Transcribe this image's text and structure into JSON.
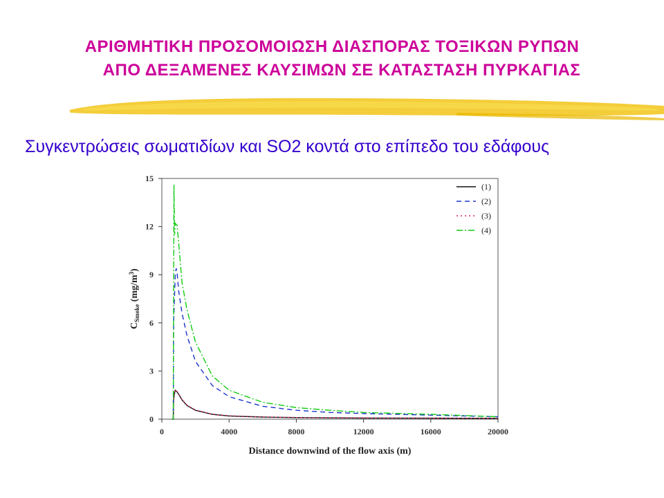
{
  "slide": {
    "title_line1": "ΑΡΙΘΜΗΤΙΚΗ ΠΡΟΣΟΜΟΙΩΣΗ ΔΙΑΣΠΟΡΑΣ ΤΟΞΙΚΩΝ ΡΥΠΩΝ",
    "title_line2": "ΑΠΟ ΔΕΞΑΜΕΝΕΣ ΚΑΥΣΙΜΩΝ ΣΕ ΚΑΤΑΣΤΑΣΗ ΠΥΡΚΑΓΙΑΣ",
    "subtitle": "Συγκεντρώσεις σωματιδίων και SO2 κοντά στο επίπεδο του εδάφους"
  },
  "colors": {
    "title": "#cc0099",
    "subtitle": "#3300cc",
    "brush": "#f2c418"
  },
  "chart_data": {
    "type": "line",
    "xlabel": "Distance downwind of the flow axis (m)",
    "ylabel_main": "C",
    "ylabel_sub": "Smoke",
    "ylabel_unit": "(mg/m",
    "ylabel_sup": "3",
    "ylabel_close": ")",
    "xlim": [
      0,
      20000
    ],
    "ylim": [
      0,
      15
    ],
    "xticks": [
      0,
      4000,
      8000,
      12000,
      16000,
      20000
    ],
    "yticks": [
      0,
      3,
      6,
      9,
      12,
      15
    ],
    "legend_position": "top-right",
    "series": [
      {
        "name": "(1)",
        "color": "#111111",
        "dash": "",
        "x": [
          600,
          680,
          700,
          750,
          800,
          850,
          900,
          1000,
          1200,
          1500,
          2000,
          3000,
          4000,
          6000,
          8000,
          12000,
          16000,
          20000
        ],
        "y": [
          0,
          0,
          1.2,
          1.6,
          1.8,
          1.75,
          1.7,
          1.55,
          1.2,
          0.85,
          0.55,
          0.3,
          0.2,
          0.13,
          0.1,
          0.07,
          0.06,
          0.05
        ]
      },
      {
        "name": "(2)",
        "color": "#1a33cc",
        "dash": "7,5",
        "x": [
          600,
          680,
          700,
          800,
          850,
          900,
          1000,
          1200,
          1500,
          2000,
          3000,
          4000,
          6000,
          8000,
          10000,
          12000,
          16000,
          20000
        ],
        "y": [
          0,
          0,
          6.0,
          9.0,
          9.4,
          9.2,
          8.0,
          6.6,
          5.2,
          3.6,
          2.1,
          1.4,
          0.8,
          0.55,
          0.42,
          0.35,
          0.25,
          0.15
        ]
      },
      {
        "name": "(3)",
        "color": "#dd2255",
        "dash": "2,4",
        "x": [
          600,
          680,
          700,
          750,
          800,
          850,
          900,
          1000,
          1200,
          1500,
          2000,
          3000,
          4000,
          6000,
          8000,
          12000,
          16000,
          20000
        ],
        "y": [
          0,
          0,
          1.2,
          1.65,
          1.85,
          1.78,
          1.72,
          1.58,
          1.22,
          0.88,
          0.57,
          0.31,
          0.21,
          0.14,
          0.1,
          0.08,
          0.06,
          0.05
        ]
      },
      {
        "name": "(4)",
        "color": "#11cc11",
        "dash": "9,3,2,3",
        "x": [
          600,
          680,
          720,
          760,
          800,
          900,
          1000,
          1200,
          1500,
          2000,
          3000,
          4000,
          6000,
          8000,
          10000,
          12000,
          16000,
          20000
        ],
        "y": [
          0,
          0,
          14.6,
          11.5,
          12.2,
          12.1,
          11.0,
          8.5,
          6.8,
          4.8,
          2.7,
          1.8,
          1.05,
          0.72,
          0.55,
          0.42,
          0.3,
          0.15
        ]
      }
    ]
  }
}
